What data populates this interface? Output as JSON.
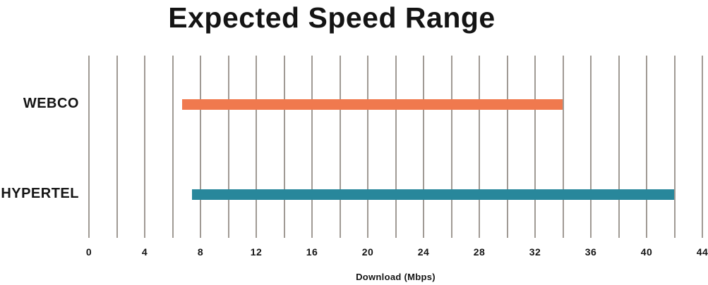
{
  "title": "Expected Speed Range",
  "colors": {
    "background": "#FFFFFF",
    "gridline": "#A09A94",
    "text": "#141414",
    "webco_bar": "#F0794E",
    "hypertel_bar": "#28879B"
  },
  "chart_data": {
    "type": "bar",
    "subtype": "horizontal-range-bars",
    "title": "Expected Speed Range",
    "xlabel": "Download (Mbps)",
    "ylabel": "",
    "xlim": [
      0,
      44
    ],
    "grid": "vertical",
    "gridline_step": 2,
    "x_ticks": [
      0,
      4,
      8,
      12,
      16,
      20,
      24,
      28,
      32,
      36,
      40,
      44
    ],
    "categories": [
      "WEBCO",
      "HYPERTEL"
    ],
    "series": [
      {
        "name": "WEBCO",
        "range_start": 6.7,
        "range_end": 34,
        "color": "#F0794E"
      },
      {
        "name": "HYPERTEL",
        "range_start": 7.4,
        "range_end": 42,
        "color": "#28879B"
      }
    ],
    "legend": "none"
  }
}
